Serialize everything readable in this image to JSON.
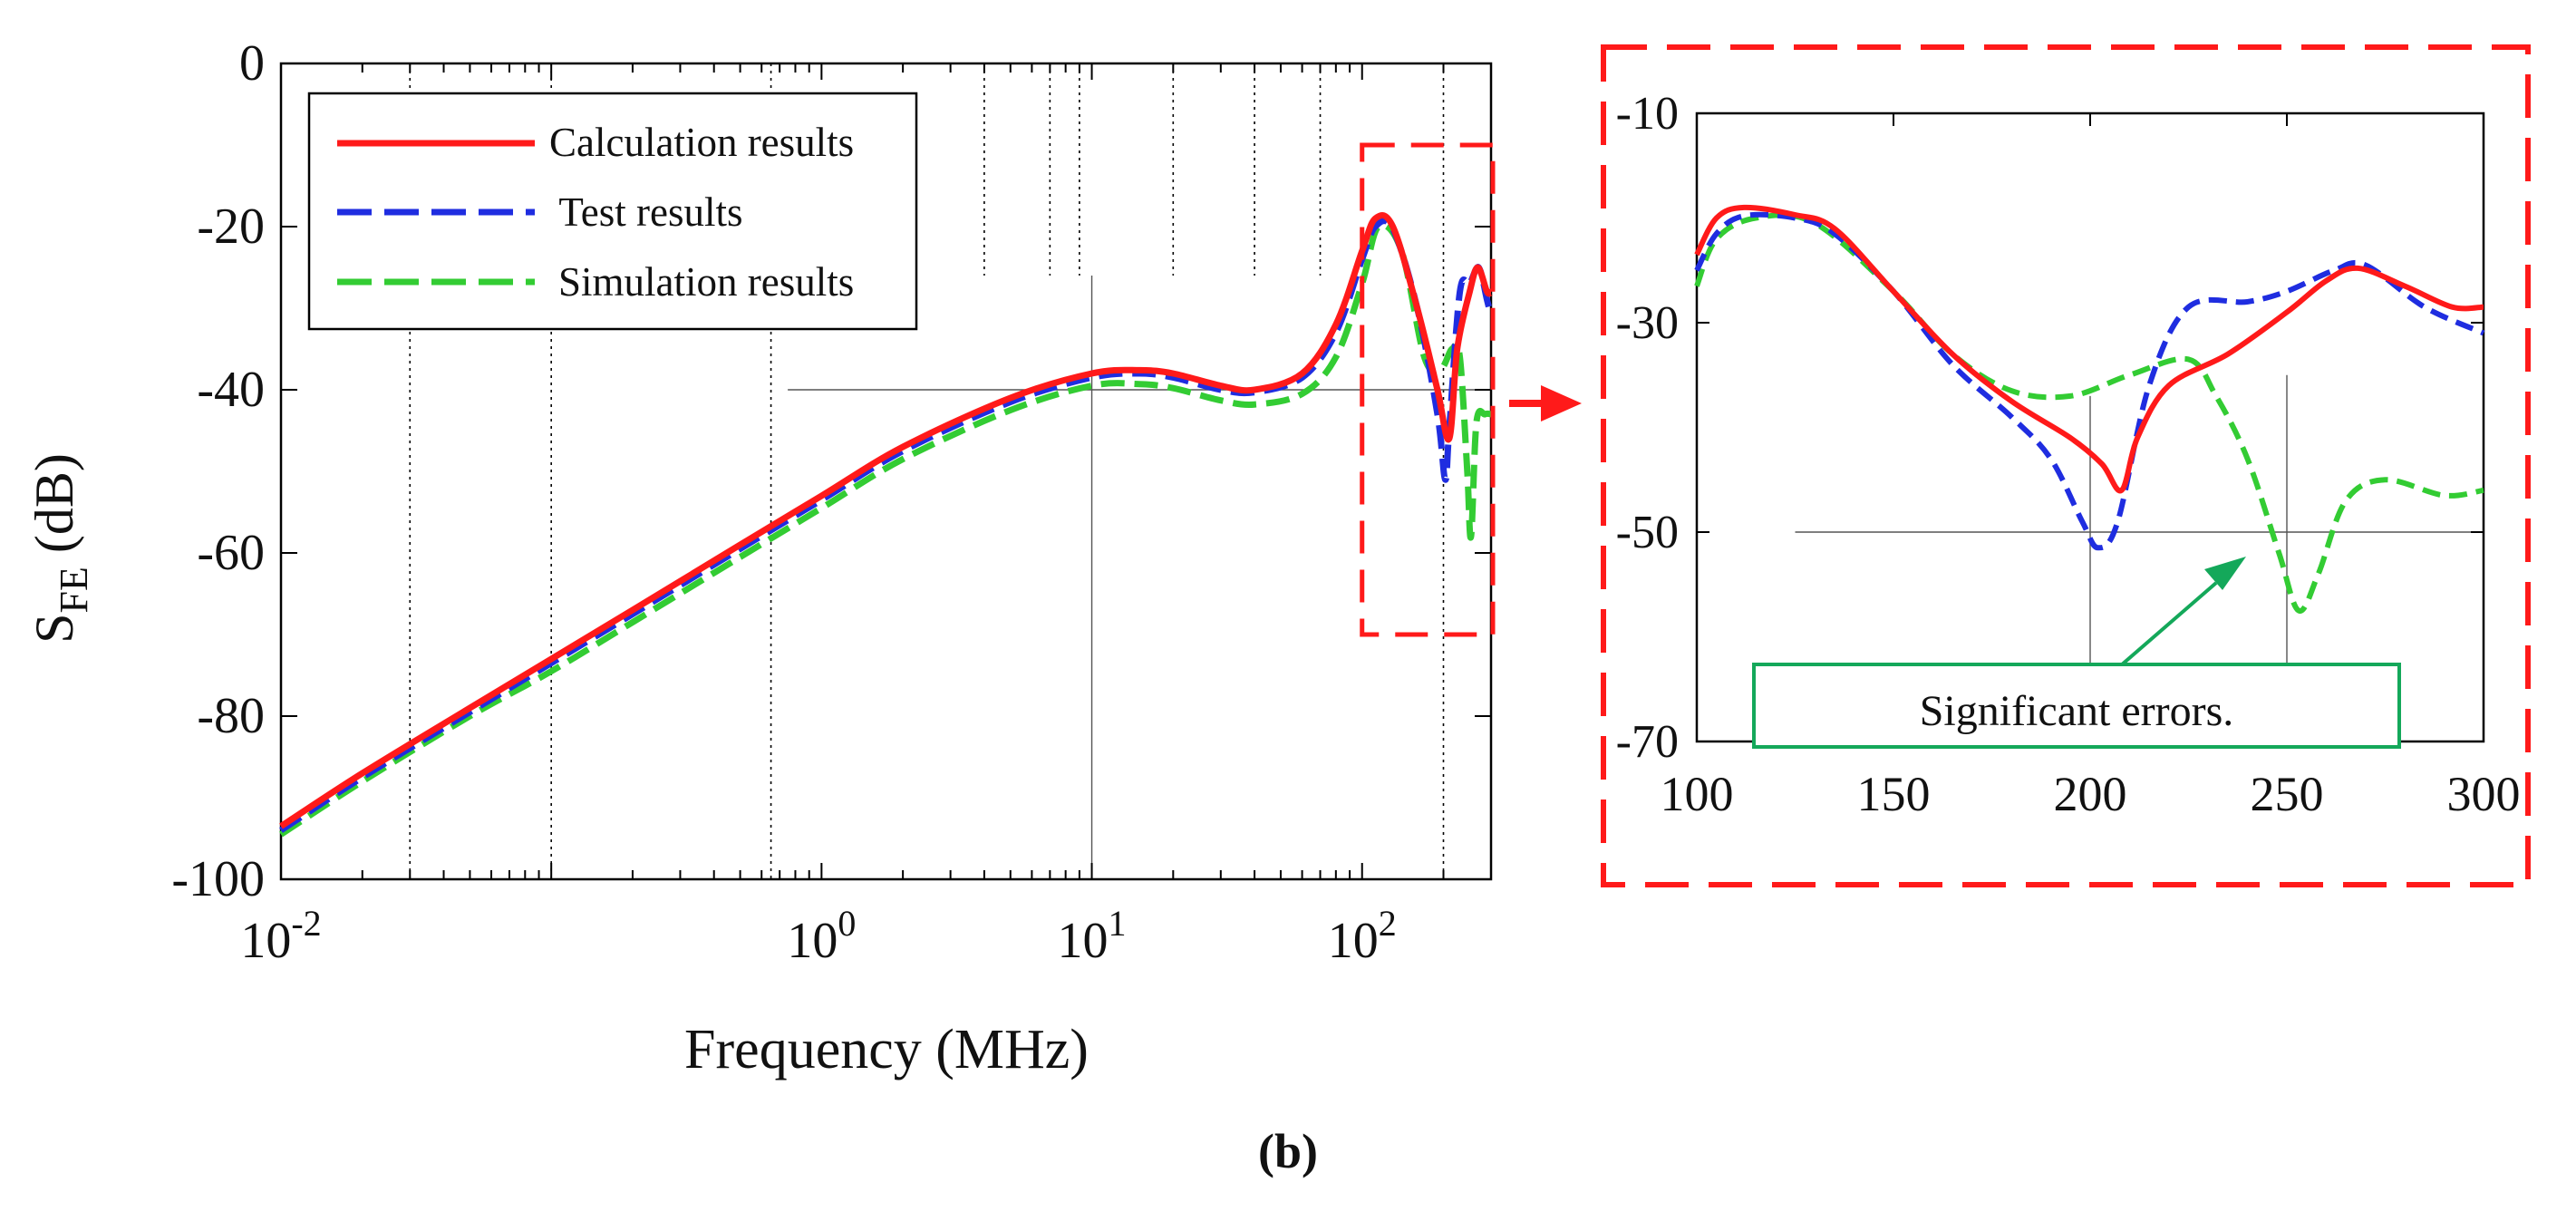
{
  "figure_label": "(b)",
  "chart_data": [
    {
      "type": "line",
      "panel": "main",
      "xlabel": "Frequency (MHz)",
      "ylabel_main": "S",
      "ylabel_sub": "FE",
      "ylabel_unit": " (dB)",
      "xscale": "log",
      "xlim": [
        0.01,
        300
      ],
      "ylim": [
        -100,
        0
      ],
      "x_ticks": [
        {
          "value": 0.01,
          "base": "10",
          "exp": "-2"
        },
        {
          "value": 1,
          "base": "10",
          "exp": "0"
        },
        {
          "value": 10,
          "base": "10",
          "exp": "1"
        },
        {
          "value": 100,
          "base": "10",
          "exp": "2"
        }
      ],
      "y_ticks": [
        0,
        -20,
        -40,
        -60,
        -80,
        -100
      ],
      "y_tick_labels": [
        "0",
        "-20",
        "-40",
        "-60",
        "-80",
        "-100"
      ],
      "legend": {
        "position": "top-left",
        "entries": [
          "Calculation results",
          " Test results",
          "Simulation results"
        ]
      },
      "series": [
        {
          "name": "Calculation results",
          "color": "#ff1a1a",
          "style": "solid",
          "x": [
            0.01,
            0.02,
            0.05,
            0.1,
            0.2,
            0.5,
            1,
            2,
            5,
            10,
            15,
            20,
            30,
            40,
            60,
            80,
            100,
            112,
            130,
            160,
            190,
            210,
            225,
            250,
            268,
            290,
            300
          ],
          "y": [
            -93.5,
            -87,
            -79,
            -73,
            -67,
            -59,
            -53,
            -47,
            -41,
            -38,
            -37.6,
            -38,
            -39.5,
            -40,
            -38,
            -32,
            -23,
            -19,
            -20,
            -30,
            -40,
            -46,
            -35,
            -28,
            -25,
            -28,
            -28
          ]
        },
        {
          "name": " Test results",
          "color": "#1f2de0",
          "style": "dashed",
          "x": [
            0.01,
            0.02,
            0.05,
            0.1,
            0.2,
            0.5,
            1,
            2,
            5,
            10,
            15,
            20,
            30,
            40,
            60,
            80,
            100,
            112,
            130,
            160,
            190,
            203,
            210,
            230,
            250,
            270,
            290,
            300
          ],
          "y": [
            -94,
            -87.5,
            -79.5,
            -73.5,
            -67.5,
            -59.5,
            -53.5,
            -47.5,
            -41.5,
            -38.5,
            -38,
            -38.5,
            -40,
            -40.3,
            -38.5,
            -33,
            -24,
            -20,
            -20.3,
            -30,
            -43,
            -51,
            -45,
            -28,
            -27,
            -25,
            -29,
            -31
          ]
        },
        {
          "name": "Simulation results",
          "color": "#33cc33",
          "style": "dashed",
          "x": [
            0.01,
            0.02,
            0.05,
            0.1,
            0.2,
            0.5,
            1,
            2,
            5,
            10,
            15,
            20,
            30,
            40,
            60,
            80,
            100,
            115,
            140,
            170,
            195,
            215,
            230,
            245,
            253,
            265,
            285,
            300
          ],
          "y": [
            -94.5,
            -88,
            -80,
            -74.5,
            -68.5,
            -60.5,
            -54.5,
            -48.5,
            -42.5,
            -39.5,
            -39.3,
            -39.8,
            -41.3,
            -41.8,
            -40.5,
            -36,
            -27,
            -20,
            -23,
            -36,
            -37.5,
            -35,
            -36,
            -50,
            -58,
            -44,
            -43,
            -43
          ]
        }
      ],
      "inset_box": {
        "x": [
          100,
          300
        ],
        "y": [
          -70,
          -10
        ]
      }
    },
    {
      "type": "line",
      "panel": "zoom",
      "xlim": [
        100,
        300
      ],
      "ylim": [
        -70,
        -10
      ],
      "x_ticks": [
        100,
        150,
        200,
        250,
        300
      ],
      "x_tick_labels": [
        "100",
        "150",
        "200",
        "250",
        "300"
      ],
      "y_ticks": [
        -10,
        -30,
        -50,
        -70
      ],
      "y_tick_labels": [
        "-10",
        "-30",
        "-50",
        "-70"
      ],
      "annotation": "Significant errors.",
      "series": [
        {
          "name": "Calculation results",
          "color": "#ff1a1a",
          "style": "solid",
          "x": [
            100,
            105,
            112,
            125,
            135,
            150,
            165,
            180,
            195,
            203,
            208,
            212,
            220,
            235,
            250,
            260,
            268,
            280,
            292,
            300
          ],
          "y": [
            -23.5,
            -20,
            -19,
            -19.7,
            -21,
            -27,
            -33,
            -37.5,
            -41,
            -43.5,
            -46,
            -41,
            -36,
            -33,
            -29,
            -26,
            -24.8,
            -26.5,
            -28.5,
            -28.5
          ]
        },
        {
          "name": " Test results",
          "color": "#1f2de0",
          "style": "dashed",
          "x": [
            100,
            105,
            112,
            125,
            135,
            150,
            165,
            180,
            190,
            198,
            202,
            207,
            215,
            225,
            240,
            250,
            262,
            270,
            285,
            300
          ],
          "y": [
            -25,
            -21.5,
            -19.8,
            -20,
            -21.5,
            -27,
            -34,
            -39,
            -43,
            -49,
            -51.5,
            -49,
            -36,
            -28.5,
            -28,
            -27,
            -25,
            -24.5,
            -28.5,
            -31
          ]
        },
        {
          "name": "Simulation results",
          "color": "#33cc33",
          "style": "dashed",
          "x": [
            100,
            105,
            115,
            130,
            150,
            165,
            180,
            195,
            210,
            225,
            232,
            240,
            248,
            253,
            258,
            265,
            275,
            290,
            300
          ],
          "y": [
            -26.5,
            -22,
            -20,
            -20.5,
            -27,
            -33,
            -36.5,
            -37,
            -35,
            -33.5,
            -37,
            -43,
            -52,
            -57.5,
            -54,
            -47,
            -45,
            -46.5,
            -46
          ]
        }
      ]
    }
  ]
}
